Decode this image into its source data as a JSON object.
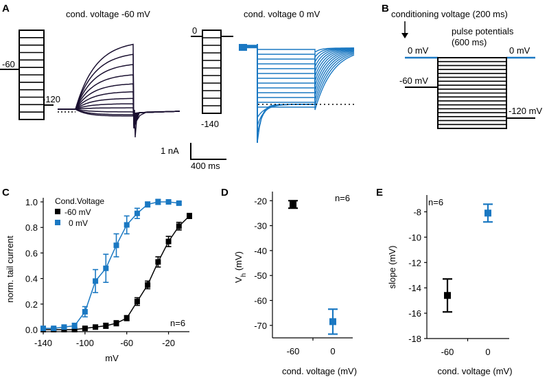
{
  "panels": {
    "A": {
      "label": "A",
      "title_left": "cond. voltage -60 mV",
      "title_right": "cond. voltage 0 mV",
      "protocol_left_labels": [
        "-60",
        "-120"
      ],
      "protocol_right_labels": [
        "0",
        "-140"
      ],
      "scalebar_current": "1 nA",
      "scalebar_time": "400 ms"
    },
    "B": {
      "label": "B",
      "conditioning_label": "conditioning voltage (200 ms)",
      "pulse_label_line1": "pulse potentials",
      "pulse_label_line2": "(600 ms)",
      "left_0mv": "0 mV",
      "right_0mv": "0 mV",
      "left_m60": "-60 mV",
      "right_m120": "-120 mV"
    },
    "C": {
      "label": "C"
    },
    "D": {
      "label": "D"
    },
    "E": {
      "label": "E"
    }
  },
  "colors": {
    "neg60": "#000000",
    "zero": "#1a78c2",
    "trace_neg60": "#1a1030"
  },
  "chart_data": [
    {
      "panel": "C",
      "type": "line",
      "xlabel": "mV",
      "ylabel": "norm. tail current",
      "xlim": [
        -140,
        0
      ],
      "ylim": [
        0,
        1.0
      ],
      "xticks": [
        -140,
        -100,
        -60,
        -20
      ],
      "yticks": [
        0.0,
        0.2,
        0.4,
        0.6,
        0.8,
        1.0
      ],
      "ytick_labels": [
        "0.0",
        "0.2",
        "0.4",
        "0.6",
        "0.8",
        "1.0"
      ],
      "legend_title": "Cond.Voltage",
      "annotation": "n=6",
      "series": [
        {
          "name": "-60 mV",
          "color": "#000000",
          "x": [
            -140,
            -130,
            -120,
            -110,
            -100,
            -90,
            -80,
            -70,
            -60,
            -50,
            -40,
            -30,
            -20,
            -10,
            0
          ],
          "y": [
            0.0,
            0.0,
            0.0,
            0.0,
            0.01,
            0.02,
            0.03,
            0.05,
            0.09,
            0.22,
            0.35,
            0.53,
            0.69,
            0.81,
            0.89
          ],
          "err": [
            0.01,
            0.01,
            0.01,
            0.01,
            0.01,
            0.01,
            0.02,
            0.02,
            0.02,
            0.03,
            0.03,
            0.04,
            0.04,
            0.03,
            0.02
          ]
        },
        {
          "name": "0 mV",
          "color": "#1a78c2",
          "x": [
            -140,
            -130,
            -120,
            -110,
            -100,
            -90,
            -80,
            -70,
            -60,
            -50,
            -40,
            -30,
            -20,
            -10
          ],
          "y": [
            0.01,
            0.01,
            0.02,
            0.03,
            0.14,
            0.38,
            0.48,
            0.66,
            0.82,
            0.91,
            0.98,
            1.0,
            1.0,
            0.99
          ],
          "err": [
            0.01,
            0.01,
            0.01,
            0.02,
            0.04,
            0.09,
            0.11,
            0.09,
            0.07,
            0.04,
            0.02,
            0.02,
            0.01,
            0.01
          ]
        }
      ]
    },
    {
      "panel": "D",
      "type": "scatter",
      "xlabel": "cond. voltage (mV)",
      "ylabel": "V",
      "ylabel_sub": "h",
      "ylabel_unit": " (mV)",
      "categories": [
        "-60",
        "0"
      ],
      "ylim": [
        -75,
        -18
      ],
      "yticks": [
        -20,
        -30,
        -40,
        -50,
        -60,
        -70
      ],
      "annotation": "n=6",
      "series": [
        {
          "name": "-60 mV",
          "color": "#000000",
          "category": "-60",
          "y": -21.5,
          "err": 1.5
        },
        {
          "name": "0 mV",
          "color": "#1a78c2",
          "category": "0",
          "y": -68.5,
          "err": 5.0
        }
      ]
    },
    {
      "panel": "E",
      "type": "scatter",
      "xlabel": "cond. voltage (mV)",
      "ylabel": "slope (mV)",
      "categories": [
        "-60",
        "0"
      ],
      "ylim": [
        -18,
        -7
      ],
      "yticks": [
        -8,
        -10,
        -12,
        -14,
        -16,
        -18
      ],
      "annotation": "n=6",
      "series": [
        {
          "name": "-60 mV",
          "color": "#000000",
          "category": "-60",
          "y": -14.6,
          "err": 1.3
        },
        {
          "name": "0 mV",
          "color": "#1a78c2",
          "category": "0",
          "y": -8.1,
          "err": 0.7
        }
      ]
    }
  ]
}
